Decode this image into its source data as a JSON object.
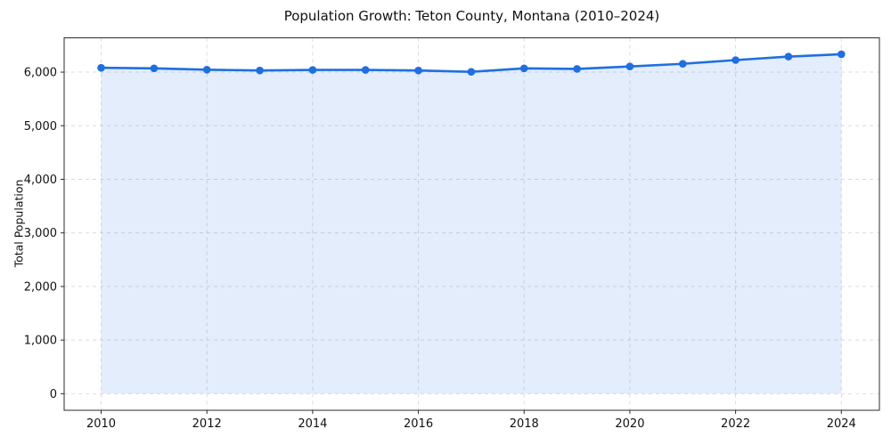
{
  "title": "Population Growth: Teton County, Montana (2010–2024)",
  "chart_data": {
    "type": "line",
    "title": "Population Growth: Teton County, Montana (2010–2024)",
    "xlabel": "",
    "ylabel": "Total Population",
    "x": [
      2010,
      2011,
      2012,
      2013,
      2014,
      2015,
      2016,
      2017,
      2018,
      2019,
      2020,
      2021,
      2022,
      2023,
      2024
    ],
    "series": [
      {
        "name": "Total Population",
        "values": [
          6080,
          6070,
          6045,
          6030,
          6040,
          6040,
          6030,
          6005,
          6070,
          6060,
          6105,
          6155,
          6225,
          6290,
          6335
        ]
      }
    ],
    "xticks": [
      2010,
      2012,
      2014,
      2016,
      2018,
      2020,
      2022,
      2024
    ],
    "yticks": [
      0,
      1000,
      2000,
      3000,
      4000,
      5000,
      6000
    ],
    "ytick_labels": [
      "0",
      "1,000",
      "2,000",
      "3,000",
      "4,000",
      "5,000",
      "6,000"
    ],
    "xlim": [
      2009.3,
      2024.72
    ],
    "ylim": [
      -310,
      6640
    ],
    "grid": true,
    "grid_style": "dashed",
    "legend": false,
    "marker": "circle",
    "line_color": "#1f6fe0",
    "fill_under": true,
    "fill_color": "#1f6fe0",
    "fill_opacity": 0.12,
    "background_color": "#ffffff",
    "grid_color": "#c9c9c9",
    "spine_color": "#2b2b2b",
    "tick_color": "#2b2b2b",
    "text_color": "#111111"
  }
}
